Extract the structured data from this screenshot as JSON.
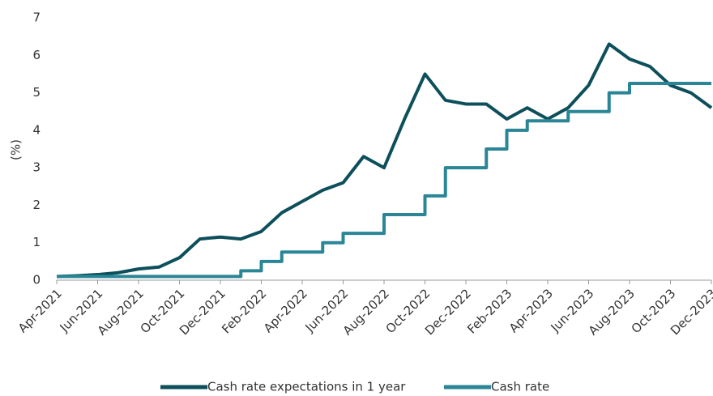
{
  "chart_data": {
    "type": "line",
    "y_label": "(%)",
    "categories": [
      "Apr-2021",
      null,
      "Jun-2021",
      null,
      "Aug-2021",
      null,
      "Oct-2021",
      null,
      "Dec-2021",
      null,
      "Feb-2022",
      null,
      "Apr-2022",
      null,
      "Jun-2022",
      null,
      "Aug-2022",
      null,
      "Oct-2022",
      null,
      "Dec-2022",
      null,
      "Feb-2023",
      null,
      "Apr-2023",
      null,
      "Jun-2023",
      null,
      "Aug-2023",
      null,
      "Oct-2023",
      null,
      "Dec-2023"
    ],
    "series": [
      {
        "name": "Cash rate expectations in 1 year",
        "color": "#0d4f5a",
        "values": [
          0.1,
          0.12,
          0.15,
          0.2,
          0.3,
          0.35,
          0.6,
          1.1,
          1.15,
          1.1,
          1.3,
          1.8,
          2.1,
          2.4,
          2.6,
          3.3,
          3.0,
          4.3,
          5.5,
          4.8,
          4.7,
          4.7,
          4.3,
          4.6,
          4.3,
          4.6,
          5.2,
          6.3,
          5.9,
          5.7,
          5.2,
          5.0,
          4.6
        ]
      },
      {
        "name": "Cash rate",
        "color": "#2a8696",
        "step": "after",
        "values": [
          0.1,
          0.1,
          0.1,
          0.1,
          0.1,
          0.1,
          0.1,
          0.1,
          0.1,
          0.25,
          0.5,
          0.75,
          0.75,
          1.0,
          1.25,
          1.25,
          1.75,
          1.75,
          2.25,
          3.0,
          3.0,
          3.5,
          4.0,
          4.25,
          4.25,
          4.5,
          4.5,
          5.0,
          5.25,
          5.25,
          5.25,
          5.25,
          5.25
        ]
      }
    ],
    "ylim": [
      0,
      7
    ],
    "yticks": [
      0,
      1,
      2,
      3,
      4,
      5,
      6,
      7
    ],
    "grid": false,
    "legend": "bottom"
  }
}
